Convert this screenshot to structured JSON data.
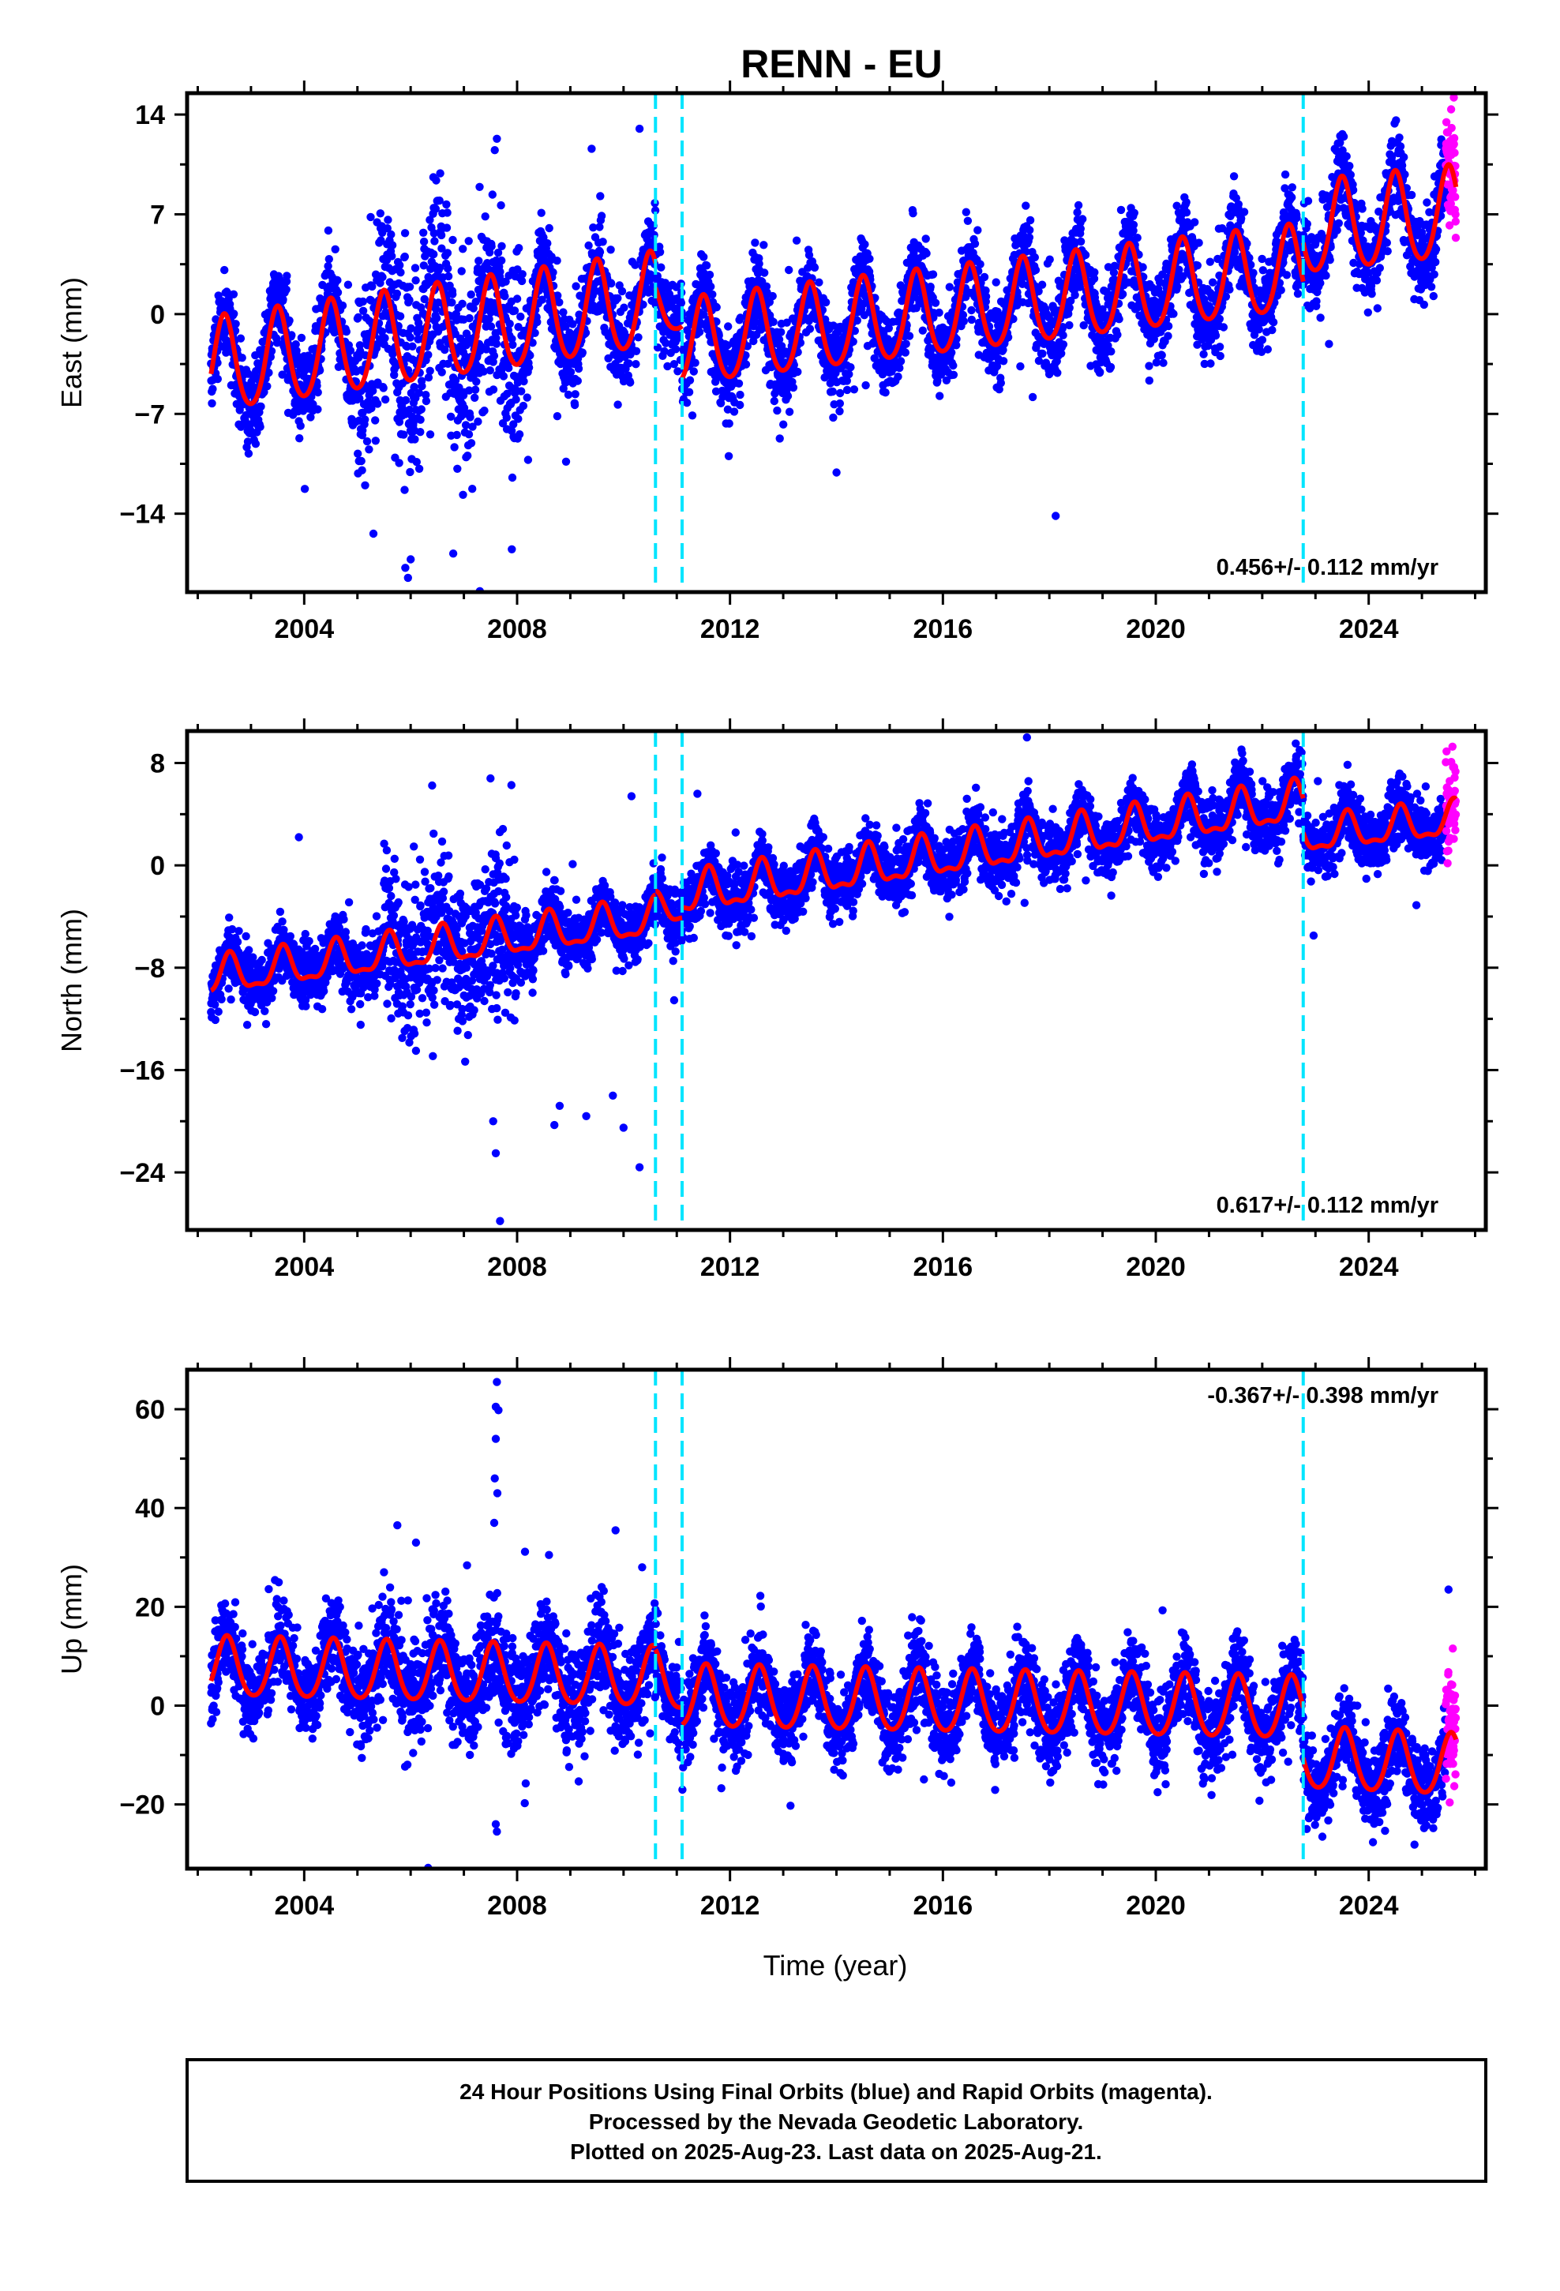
{
  "title": "RENN - EU",
  "colors": {
    "final_orbits": "#0000ff",
    "rapid_orbits": "#ff00ff",
    "model": "#ff0000",
    "equipment_change": "#00e5ff"
  },
  "x_axis_label": "Time (year)",
  "footer": {
    "line1": "24 Hour Positions Using Final Orbits (blue) and Rapid Orbits (magenta).",
    "line2": "Processed by the Nevada Geodetic Laboratory.",
    "line3": "Plotted on 2025-Aug-23. Last data on 2025-Aug-21."
  },
  "chart_data": [
    {
      "type": "scatter",
      "component": "east",
      "ylabel": "East (mm)",
      "xlim": [
        2001.8,
        2026.2
      ],
      "ylim": [
        -19.5,
        15.5
      ],
      "x_ticks": [
        2004,
        2008,
        2012,
        2016,
        2020,
        2024
      ],
      "y_ticks": [
        14,
        7,
        0,
        -7,
        -14
      ],
      "rate_label": "0.456+/- 0.112 mm/yr",
      "rate_position": "bottom-right",
      "data_start": 2002.25,
      "data_end": 2025.64,
      "rapid_start": 2025.45,
      "steps": [
        2010.6,
        2011.1,
        2022.77
      ],
      "model_segments": [
        {
          "from": 2002.25,
          "to": 2010.6,
          "offset": -3.8,
          "trend": 0.55,
          "annual_amp": 3.3,
          "semiannual_amp": 0.4,
          "phase_peak": 0.5
        },
        {
          "from": 2010.6,
          "to": 2011.1,
          "offset": 0.3,
          "trend": 0.456,
          "annual_amp": 1.8,
          "semiannual_amp": 0.3,
          "phase_peak": 0.5
        },
        {
          "from": 2011.1,
          "to": 2022.77,
          "offset": -2.2,
          "trend": 0.45,
          "annual_amp": 3.0,
          "semiannual_amp": 0.4,
          "phase_peak": 0.5
        },
        {
          "from": 2022.77,
          "to": 2025.64,
          "offset": 5.8,
          "trend": 0.4,
          "annual_amp": 3.2,
          "semiannual_amp": 0.4,
          "phase_peak": 0.5
        }
      ],
      "scatter_sd": 1.5,
      "noisy_window": [
        2005.0,
        2008.1
      ],
      "noisy_sd": 3.5,
      "outliers": [
        {
          "x": 2005.95,
          "y": -18.5
        },
        {
          "x": 2005.9,
          "y": -17.8
        },
        {
          "x": 2005.3,
          "y": -15.4
        },
        {
          "x": 2007.62,
          "y": 12.3
        },
        {
          "x": 2007.58,
          "y": 11.5
        },
        {
          "x": 2009.4,
          "y": 11.6
        },
        {
          "x": 2010.3,
          "y": 13.0
        },
        {
          "x": 2006.8,
          "y": -16.8
        },
        {
          "x": 2007.9,
          "y": -16.5
        },
        {
          "x": 2006.0,
          "y": -17.2
        }
      ]
    },
    {
      "type": "scatter",
      "component": "north",
      "ylabel": "North (mm)",
      "xlim": [
        2001.8,
        2026.2
      ],
      "ylim": [
        -28.5,
        10.5
      ],
      "x_ticks": [
        2004,
        2008,
        2012,
        2016,
        2020,
        2024
      ],
      "y_ticks": [
        8,
        0,
        -8,
        -16,
        -24
      ],
      "rate_label": "0.617+/- 0.112 mm/yr",
      "rate_position": "bottom-right",
      "data_start": 2002.25,
      "data_end": 2025.64,
      "rapid_start": 2025.45,
      "steps": [
        2010.6,
        2011.1,
        2022.77
      ],
      "model_segments": [
        {
          "from": 2002.25,
          "to": 2010.6,
          "offset": -8.8,
          "trend": 0.55,
          "annual_amp": 1.4,
          "semiannual_amp": 0.5,
          "phase_peak": 0.6
        },
        {
          "from": 2010.6,
          "to": 2011.1,
          "offset": -3.6,
          "trend": 0.617,
          "annual_amp": 1.2,
          "semiannual_amp": 0.4,
          "phase_peak": 0.6
        },
        {
          "from": 2011.1,
          "to": 2022.77,
          "offset": -2.4,
          "trend": 0.62,
          "annual_amp": 1.5,
          "semiannual_amp": 0.6,
          "phase_peak": 0.6
        },
        {
          "from": 2022.77,
          "to": 2025.64,
          "offset": 2.2,
          "trend": 0.45,
          "annual_amp": 1.3,
          "semiannual_amp": 0.5,
          "phase_peak": 0.6
        }
      ],
      "scatter_sd": 1.2,
      "noisy_window": [
        2005.5,
        2008.0
      ],
      "noisy_sd": 3.0,
      "outliers": [
        {
          "x": 2007.68,
          "y": -27.8
        },
        {
          "x": 2007.6,
          "y": -22.5
        },
        {
          "x": 2007.55,
          "y": -20.0
        },
        {
          "x": 2008.7,
          "y": -20.3
        },
        {
          "x": 2008.8,
          "y": -18.8
        },
        {
          "x": 2009.3,
          "y": -19.6
        },
        {
          "x": 2010.3,
          "y": -23.6
        },
        {
          "x": 2010.0,
          "y": -20.5
        },
        {
          "x": 2009.8,
          "y": -18.0
        },
        {
          "x": 2003.9,
          "y": 2.2
        },
        {
          "x": 2007.5,
          "y": 6.8
        },
        {
          "x": 2010.15,
          "y": 5.4
        }
      ]
    },
    {
      "type": "scatter",
      "component": "up",
      "ylabel": "Up (mm)",
      "xlim": [
        2001.8,
        2026.2
      ],
      "ylim": [
        -33,
        68
      ],
      "x_ticks": [
        2004,
        2008,
        2012,
        2016,
        2020,
        2024
      ],
      "y_ticks": [
        60,
        40,
        20,
        0,
        -20
      ],
      "rate_label": "-0.367+/- 0.398 mm/yr",
      "rate_position": "top-right",
      "data_start": 2002.25,
      "data_end": 2025.64,
      "rapid_start": 2025.45,
      "steps": [
        2010.6,
        2011.1,
        2022.77
      ],
      "model_segments": [
        {
          "from": 2002.25,
          "to": 2010.6,
          "offset": 7.5,
          "trend": -0.25,
          "annual_amp": 6.0,
          "semiannual_amp": 0.8,
          "phase_peak": 0.55
        },
        {
          "from": 2010.6,
          "to": 2011.1,
          "offset": 5.0,
          "trend": -0.367,
          "annual_amp": 6.0,
          "semiannual_amp": 0.8,
          "phase_peak": 0.55
        },
        {
          "from": 2011.1,
          "to": 2022.77,
          "offset": 1.5,
          "trend": -0.2,
          "annual_amp": 6.3,
          "semiannual_amp": 0.8,
          "phase_peak": 0.55
        },
        {
          "from": 2022.77,
          "to": 2025.64,
          "offset": -11.0,
          "trend": -0.5,
          "annual_amp": 6.2,
          "semiannual_amp": 0.8,
          "phase_peak": 0.55
        }
      ],
      "scatter_sd": 4.2,
      "noisy_window": [
        2005.0,
        2010.5
      ],
      "noisy_sd": 5.5,
      "outliers": [
        {
          "x": 2007.62,
          "y": 65.5
        },
        {
          "x": 2007.6,
          "y": 60.5
        },
        {
          "x": 2007.65,
          "y": 59.8
        },
        {
          "x": 2007.6,
          "y": 54.0
        },
        {
          "x": 2007.58,
          "y": 46.0
        },
        {
          "x": 2007.63,
          "y": 43.0
        },
        {
          "x": 2007.57,
          "y": 37.0
        },
        {
          "x": 2005.75,
          "y": 36.5
        },
        {
          "x": 2009.85,
          "y": 35.5
        },
        {
          "x": 2006.1,
          "y": 33.0
        },
        {
          "x": 2005.5,
          "y": 27.0
        },
        {
          "x": 2010.35,
          "y": 28.0
        },
        {
          "x": 2007.62,
          "y": -25.5
        },
        {
          "x": 2007.6,
          "y": -24.0
        },
        {
          "x": 2008.6,
          "y": 30.5
        },
        {
          "x": 2025.5,
          "y": 23.5
        }
      ]
    }
  ]
}
